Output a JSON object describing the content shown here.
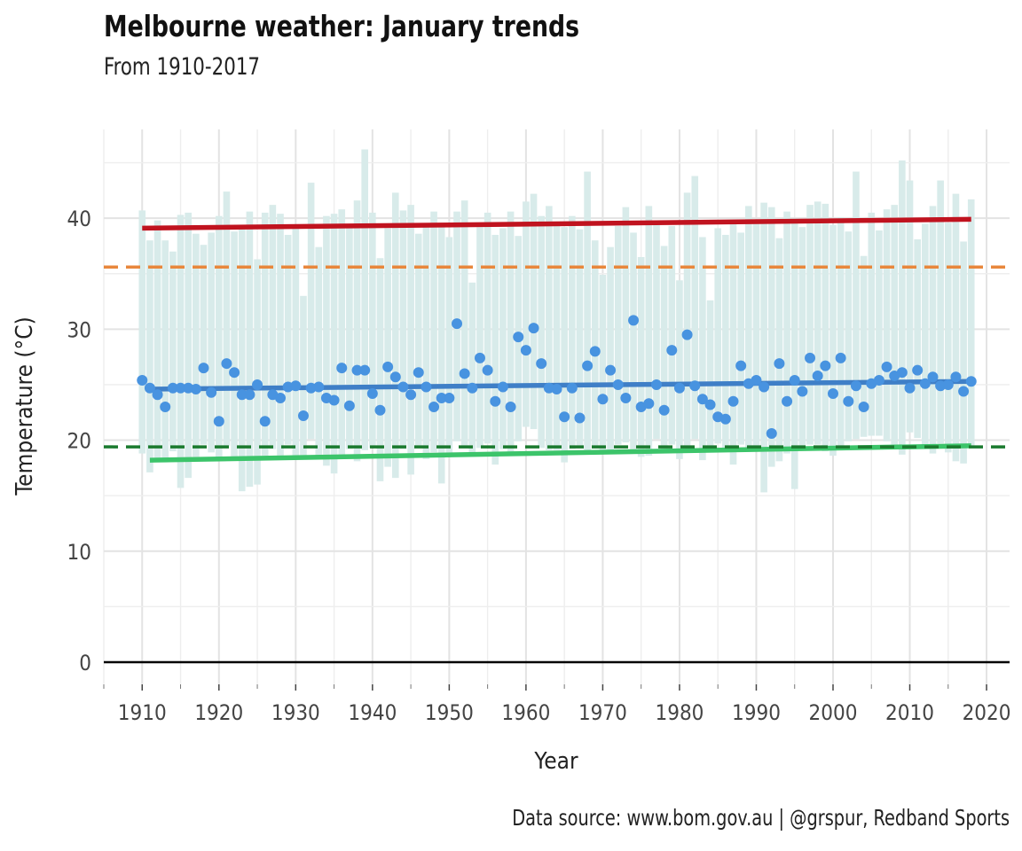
{
  "title": "Melbourne weather: January trends",
  "subtitle": "From 1910-2017",
  "caption": "Data source: www.bom.gov.au  |  @grspur, Redband Sports",
  "chart_data": {
    "type": "bar",
    "xlabel": "Year",
    "ylabel": "Temperature (°C)",
    "xlim": [
      1905,
      2023
    ],
    "ylim": [
      -2,
      48
    ],
    "x_ticks": [
      1910,
      1920,
      1930,
      1940,
      1950,
      1960,
      1970,
      1980,
      1990,
      2000,
      2010,
      2020
    ],
    "y_ticks": [
      0,
      10,
      20,
      30,
      40
    ],
    "grid": true,
    "colors": {
      "range_bars": "#d8ebea",
      "mean_points": "#4893e0",
      "mean_trend": "#3f7fc7",
      "max_trend": "#c0131f",
      "min_trend": "#3cc46a",
      "max_reference": "#e8873c",
      "min_reference": "#1a7a2e",
      "zero_line": "#000000"
    },
    "years": [
      1910,
      1911,
      1912,
      1913,
      1914,
      1915,
      1916,
      1917,
      1918,
      1919,
      1920,
      1921,
      1922,
      1923,
      1924,
      1925,
      1926,
      1927,
      1928,
      1929,
      1930,
      1931,
      1932,
      1933,
      1934,
      1935,
      1936,
      1937,
      1938,
      1939,
      1940,
      1941,
      1942,
      1943,
      1944,
      1945,
      1946,
      1947,
      1948,
      1949,
      1950,
      1951,
      1952,
      1953,
      1954,
      1955,
      1956,
      1957,
      1958,
      1959,
      1960,
      1961,
      1962,
      1963,
      1964,
      1965,
      1966,
      1967,
      1968,
      1969,
      1970,
      1971,
      1972,
      1973,
      1974,
      1975,
      1976,
      1977,
      1978,
      1979,
      1980,
      1981,
      1982,
      1983,
      1984,
      1985,
      1986,
      1987,
      1988,
      1989,
      1990,
      1991,
      1992,
      1993,
      1994,
      1995,
      1996,
      1997,
      1998,
      1999,
      2000,
      2001,
      2002,
      2003,
      2004,
      2005,
      2006,
      2007,
      2008,
      2009,
      2010,
      2011,
      2012,
      2013,
      2014,
      2015,
      2016,
      2017,
      2018
    ],
    "monthly_max": [
      40.7,
      38,
      39.8,
      38,
      37,
      40.3,
      40.5,
      38.6,
      37.6,
      38.7,
      40.2,
      42.4,
      38.8,
      39,
      40.6,
      36.3,
      40.5,
      41.2,
      40.4,
      38.5,
      39.4,
      33,
      43.2,
      37.4,
      40.2,
      40.4,
      40.8,
      39.5,
      41.6,
      46.2,
      40.5,
      36.4,
      39.1,
      42.3,
      40.7,
      41.2,
      38.6,
      39.3,
      40.6,
      39.6,
      38.3,
      40.6,
      41.6,
      34.2,
      39.2,
      40.5,
      38.5,
      39.1,
      40.6,
      38.4,
      41.5,
      42.2,
      40.2,
      41.1,
      39.3,
      39.2,
      40.2,
      39,
      44.2,
      38,
      34.9,
      37.4,
      39.3,
      41,
      38.7,
      36.5,
      41.1,
      39.5,
      37.5,
      39.3,
      34.4,
      42.3,
      43.8,
      38.3,
      32.6,
      39.1,
      38.5,
      39.6,
      38.7,
      41.1,
      39.8,
      41.4,
      41,
      38.2,
      40.6,
      40,
      39.2,
      41.2,
      41.5,
      41.3,
      39.4,
      40.1,
      38.8,
      44.2,
      36.6,
      40.5,
      38.9,
      40.8,
      41.2,
      45.2,
      43.4,
      38.1,
      39.5,
      41.1,
      43.4,
      39.6,
      42.2,
      37.9,
      41.7
    ],
    "monthly_min": [
      18.8,
      17.1,
      18.3,
      18,
      19,
      15.7,
      16.6,
      18.5,
      19.6,
      18.9,
      18.3,
      19.5,
      18.2,
      15.4,
      15.8,
      16,
      18.6,
      19.2,
      18.4,
      19.6,
      18.6,
      18.3,
      20.1,
      18.6,
      17.7,
      17,
      18.6,
      19.2,
      18.1,
      19.1,
      19.3,
      16.3,
      17.6,
      16.6,
      19.2,
      16.9,
      19.4,
      18.3,
      18.9,
      16.1,
      18.5,
      19.9,
      19.4,
      18.9,
      19.3,
      19.7,
      17.8,
      19.2,
      18.8,
      19.9,
      21.2,
      21,
      19.3,
      19.1,
      19.1,
      18,
      19.2,
      19.4,
      18.9,
      19.5,
      19,
      18.9,
      19.6,
      19.8,
      19.2,
      18.5,
      18.6,
      20.1,
      19.1,
      19.6,
      18.3,
      19,
      20.1,
      18.2,
      19.4,
      19.7,
      19.1,
      17.8,
      19.6,
      19.3,
      19.1,
      15.3,
      17.6,
      18.1,
      18.8,
      15.6,
      19.3,
      19.6,
      19.6,
      19,
      18.6,
      19.1,
      19.9,
      20.1,
      20.3,
      20.4,
      20.4,
      19.9,
      19.2,
      18.7,
      20.7,
      20.2,
      19.5,
      18.8,
      19.7,
      18.9,
      18.1,
      17.9,
      19.4
    ],
    "series": [
      {
        "type": "scatter",
        "values": [
          25.4,
          24.7,
          24.1,
          23,
          24.7,
          24.7,
          24.7,
          24.6,
          26.5,
          24.3,
          21.7,
          26.9,
          26.1,
          24.1,
          24.1,
          25,
          21.7,
          24.1,
          23.8,
          24.8,
          24.9,
          22.2,
          24.7,
          24.8,
          23.8,
          23.6,
          26.5,
          23.1,
          26.3,
          26.3,
          24.2,
          22.7,
          26.6,
          25.7,
          24.8,
          24.1,
          26.1,
          24.8,
          23,
          23.8,
          23.8,
          30.5,
          26,
          24.7,
          27.4,
          26.3,
          23.5,
          24.8,
          23,
          29.3,
          28.1,
          30.1,
          26.9,
          24.7,
          24.6,
          22.1,
          24.7,
          22,
          26.7,
          28,
          23.7,
          26.3,
          25,
          23.8,
          30.8,
          23,
          23.3,
          25,
          22.7,
          28.1,
          24.7,
          29.5,
          24.9,
          23.7,
          23.2,
          22.1,
          21.9,
          23.5,
          26.7,
          25.1,
          25.4,
          24.8,
          20.6,
          26.9,
          23.5,
          25.4,
          24.4,
          27.4,
          25.8,
          26.7,
          24.2,
          27.4,
          23.5,
          24.9,
          23,
          25.1,
          25.4,
          26.6,
          25.8,
          26.1,
          24.7,
          26.3,
          25.1,
          25.7,
          24.9,
          25,
          25.7,
          24.4,
          25.3
        ]
      },
      {
        "type": "line",
        "x": [
          1911,
          2018
        ],
        "values": [
          24.6,
          25.3
        ]
      },
      {
        "type": "line",
        "x": [
          1910,
          2018
        ],
        "values": [
          39.1,
          39.9
        ]
      },
      {
        "type": "line",
        "x": [
          1911,
          2018
        ],
        "values": [
          18.2,
          19.5
        ]
      },
      {
        "type": "hline",
        "values": [
          35.6
        ]
      },
      {
        "type": "hline",
        "values": [
          19.4
        ]
      }
    ]
  }
}
